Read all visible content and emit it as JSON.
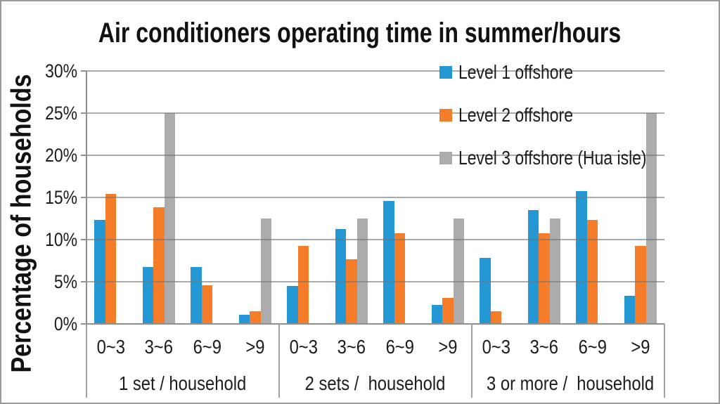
{
  "chart_data": {
    "type": "bar",
    "title": "Air conditioners operating time in summer/hours",
    "ylabel": "Percentage of households",
    "xlabel": "",
    "ylim": [
      0,
      30
    ],
    "y_tick_step": 5,
    "y_tick_labels": [
      "0%",
      "5%",
      "10%",
      "15%",
      "20%",
      "25%",
      "30%"
    ],
    "grid": true,
    "legend_position": "top-right-overlay",
    "group_labels": [
      "1 set / household",
      "2 sets /  household",
      "3 or more /  household"
    ],
    "categories": [
      "0~3",
      "3~6",
      "6~9",
      ">9"
    ],
    "series": [
      {
        "name": "Level 1 offshore",
        "color": "#2498D5",
        "values": [
          [
            12.36,
            6.74,
            6.74,
            1.12
          ],
          [
            4.49,
            11.24,
            14.61,
            2.25
          ],
          [
            7.87,
            13.48,
            15.73,
            3.37
          ]
        ]
      },
      {
        "name": "Level 2 offshore",
        "color": "#F57D29",
        "values": [
          [
            15.38,
            13.85,
            4.62,
            1.54
          ],
          [
            9.23,
            7.69,
            10.77,
            3.08
          ],
          [
            1.54,
            10.77,
            12.31,
            9.23
          ]
        ]
      },
      {
        "name": "Level 3 offshore (Hua isle)",
        "color": "#ACACAC",
        "values": [
          [
            0,
            25,
            0,
            12.5
          ],
          [
            0,
            12.5,
            0,
            12.5
          ],
          [
            0,
            12.5,
            0,
            25
          ]
        ]
      }
    ]
  }
}
